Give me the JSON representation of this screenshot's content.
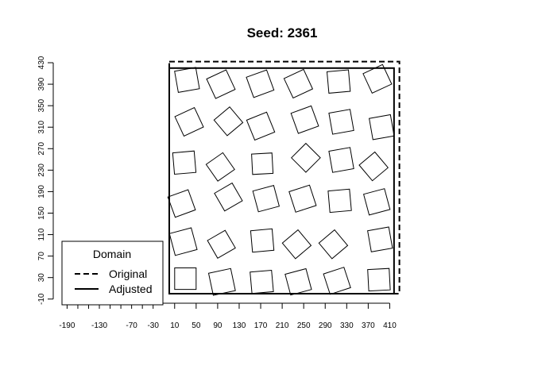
{
  "chart_data": {
    "type": "scatter",
    "title": "Seed: 2361",
    "xlabel": "",
    "ylabel": "",
    "x_ticks": [
      -190,
      -130,
      -70,
      -30,
      10,
      50,
      90,
      130,
      170,
      210,
      250,
      290,
      330,
      370,
      410
    ],
    "y_ticks": [
      -10,
      30,
      70,
      110,
      150,
      190,
      230,
      270,
      310,
      350,
      390,
      430
    ],
    "xlim": [
      -200,
      425
    ],
    "ylim": [
      -20,
      445
    ],
    "domains": [
      {
        "name": "Original",
        "line": "dashed",
        "xmin": 0,
        "xmax": 428,
        "ymin": 0,
        "ymax": 432
      },
      {
        "name": "Adjusted",
        "line": "solid",
        "xmin": 0,
        "xmax": 418,
        "ymin": 0,
        "ymax": 420
      }
    ],
    "legend": {
      "title": "Domain",
      "entries": [
        "Original",
        "Adjusted"
      ],
      "position": "bottom-left"
    },
    "squares": [
      {
        "x": 30,
        "y": 28,
        "size": 40,
        "angle": 0
      },
      {
        "x": 98,
        "y": 22,
        "size": 42,
        "angle": 12
      },
      {
        "x": 172,
        "y": 22,
        "size": 40,
        "angle": 5
      },
      {
        "x": 240,
        "y": 22,
        "size": 40,
        "angle": 15
      },
      {
        "x": 312,
        "y": 24,
        "size": 40,
        "angle": 18
      },
      {
        "x": 390,
        "y": 26,
        "size": 40,
        "angle": 3
      },
      {
        "x": 26,
        "y": 97,
        "size": 42,
        "angle": 15
      },
      {
        "x": 97,
        "y": 92,
        "size": 38,
        "angle": 30
      },
      {
        "x": 173,
        "y": 99,
        "size": 40,
        "angle": 5
      },
      {
        "x": 237,
        "y": 92,
        "size": 38,
        "angle": 40
      },
      {
        "x": 305,
        "y": 92,
        "size": 38,
        "angle": 40
      },
      {
        "x": 392,
        "y": 101,
        "size": 40,
        "angle": 10
      },
      {
        "x": 23,
        "y": 168,
        "size": 40,
        "angle": 20
      },
      {
        "x": 110,
        "y": 180,
        "size": 38,
        "angle": 30
      },
      {
        "x": 180,
        "y": 177,
        "size": 40,
        "angle": 15
      },
      {
        "x": 248,
        "y": 177,
        "size": 40,
        "angle": 18
      },
      {
        "x": 317,
        "y": 173,
        "size": 40,
        "angle": 5
      },
      {
        "x": 386,
        "y": 171,
        "size": 40,
        "angle": 15
      },
      {
        "x": 28,
        "y": 244,
        "size": 40,
        "angle": 5
      },
      {
        "x": 95,
        "y": 236,
        "size": 38,
        "angle": 35
      },
      {
        "x": 173,
        "y": 242,
        "size": 38,
        "angle": 3
      },
      {
        "x": 254,
        "y": 253,
        "size": 38,
        "angle": 45
      },
      {
        "x": 320,
        "y": 249,
        "size": 40,
        "angle": 10
      },
      {
        "x": 380,
        "y": 237,
        "size": 38,
        "angle": 40
      },
      {
        "x": 37,
        "y": 320,
        "size": 40,
        "angle": 25
      },
      {
        "x": 110,
        "y": 321,
        "size": 38,
        "angle": 40
      },
      {
        "x": 170,
        "y": 312,
        "size": 40,
        "angle": 22
      },
      {
        "x": 252,
        "y": 324,
        "size": 40,
        "angle": 20
      },
      {
        "x": 320,
        "y": 320,
        "size": 40,
        "angle": 10
      },
      {
        "x": 395,
        "y": 310,
        "size": 40,
        "angle": 10
      },
      {
        "x": 33,
        "y": 398,
        "size": 40,
        "angle": 10
      },
      {
        "x": 96,
        "y": 390,
        "size": 40,
        "angle": 25
      },
      {
        "x": 169,
        "y": 391,
        "size": 40,
        "angle": 20
      },
      {
        "x": 240,
        "y": 391,
        "size": 40,
        "angle": 25
      },
      {
        "x": 315,
        "y": 395,
        "size": 40,
        "angle": 5
      },
      {
        "x": 387,
        "y": 400,
        "size": 40,
        "angle": 25
      }
    ]
  }
}
